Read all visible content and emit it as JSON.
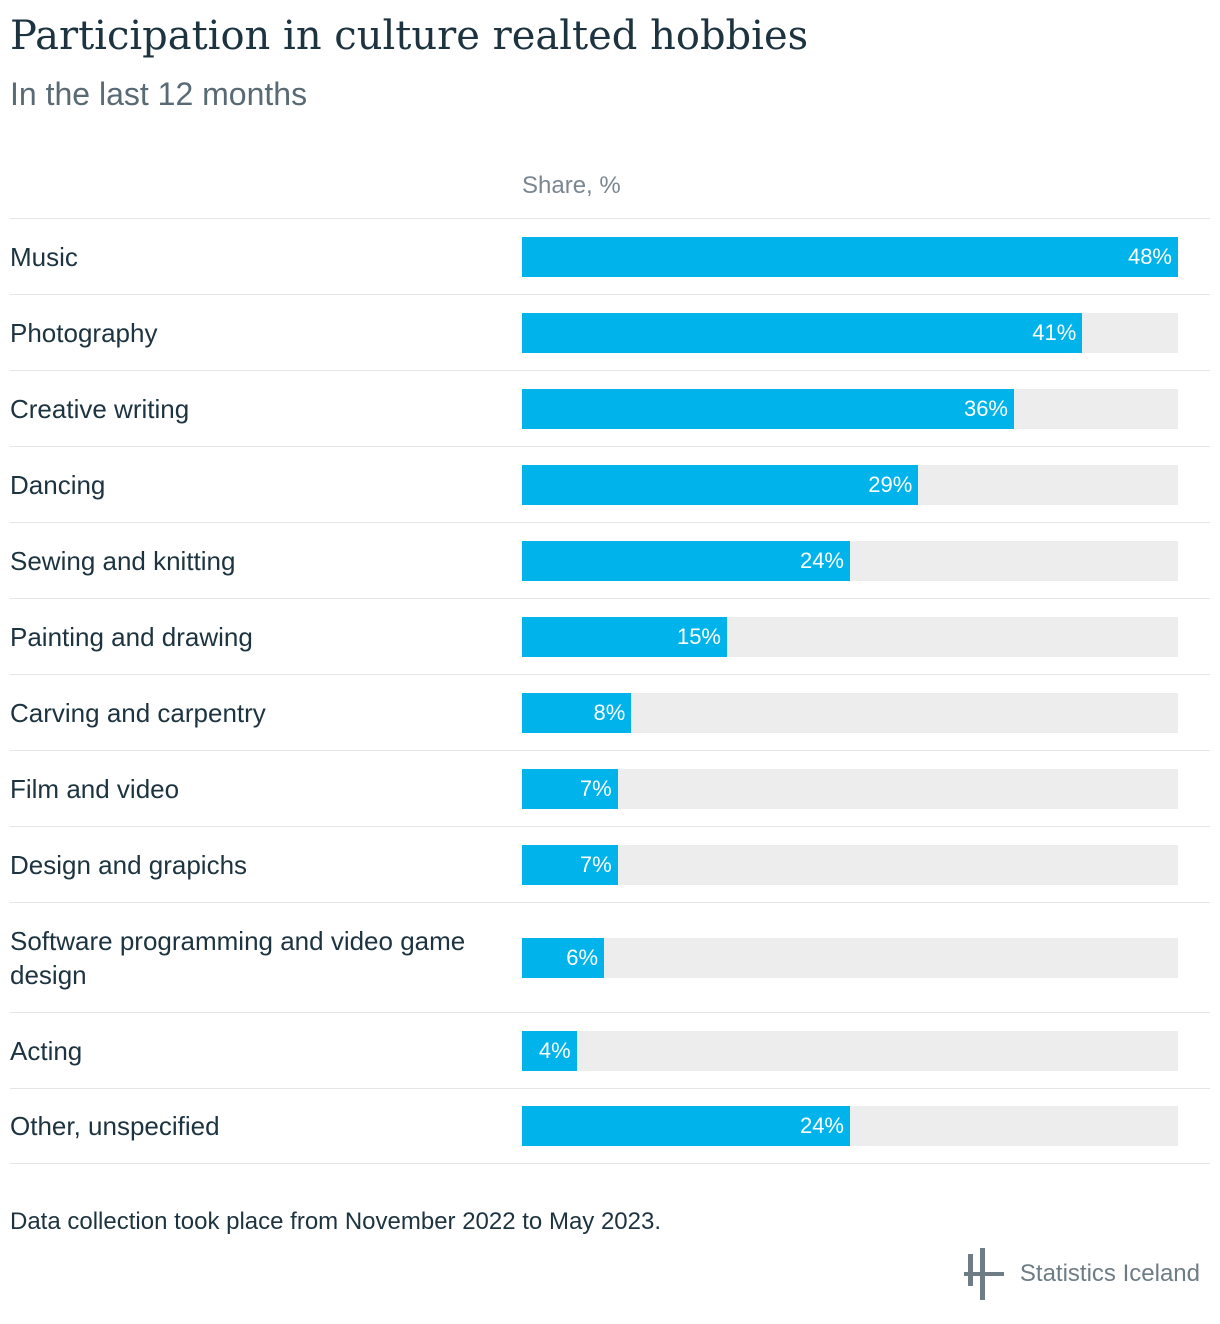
{
  "header": {
    "title": "Participation in culture realted hobbies",
    "subtitle": "In the last 12 months",
    "column_header": "Share, %"
  },
  "chart_data": {
    "type": "bar",
    "orientation": "horizontal",
    "title": "Participation in culture realted hobbies",
    "subtitle": "In the last 12 months",
    "xlabel": "Share, %",
    "ylabel": "",
    "xlim": [
      0,
      48
    ],
    "grid": false,
    "legend": "none",
    "categories": [
      "Music",
      "Photography",
      "Creative writing",
      "Dancing",
      "Sewing and knitting",
      "Painting and drawing",
      "Carving and carpentry",
      "Film and video",
      "Design and grapichs",
      "Software programming and video game design",
      "Acting",
      "Other, unspecified"
    ],
    "values": [
      48,
      41,
      36,
      29,
      24,
      15,
      8,
      7,
      7,
      6,
      4,
      24
    ],
    "value_labels": [
      "48%",
      "41%",
      "36%",
      "29%",
      "24%",
      "15%",
      "8%",
      "7%",
      "7%",
      "6%",
      "4%",
      "24%"
    ],
    "colors": {
      "bar": "#00b4eb",
      "track": "#ededed",
      "label": "#ffffff"
    }
  },
  "footer": {
    "note": "Data collection took place from November 2022 to May 2023.",
    "brand": "Statistics Iceland",
    "brand_icon": "statistics-iceland-logo-icon"
  }
}
